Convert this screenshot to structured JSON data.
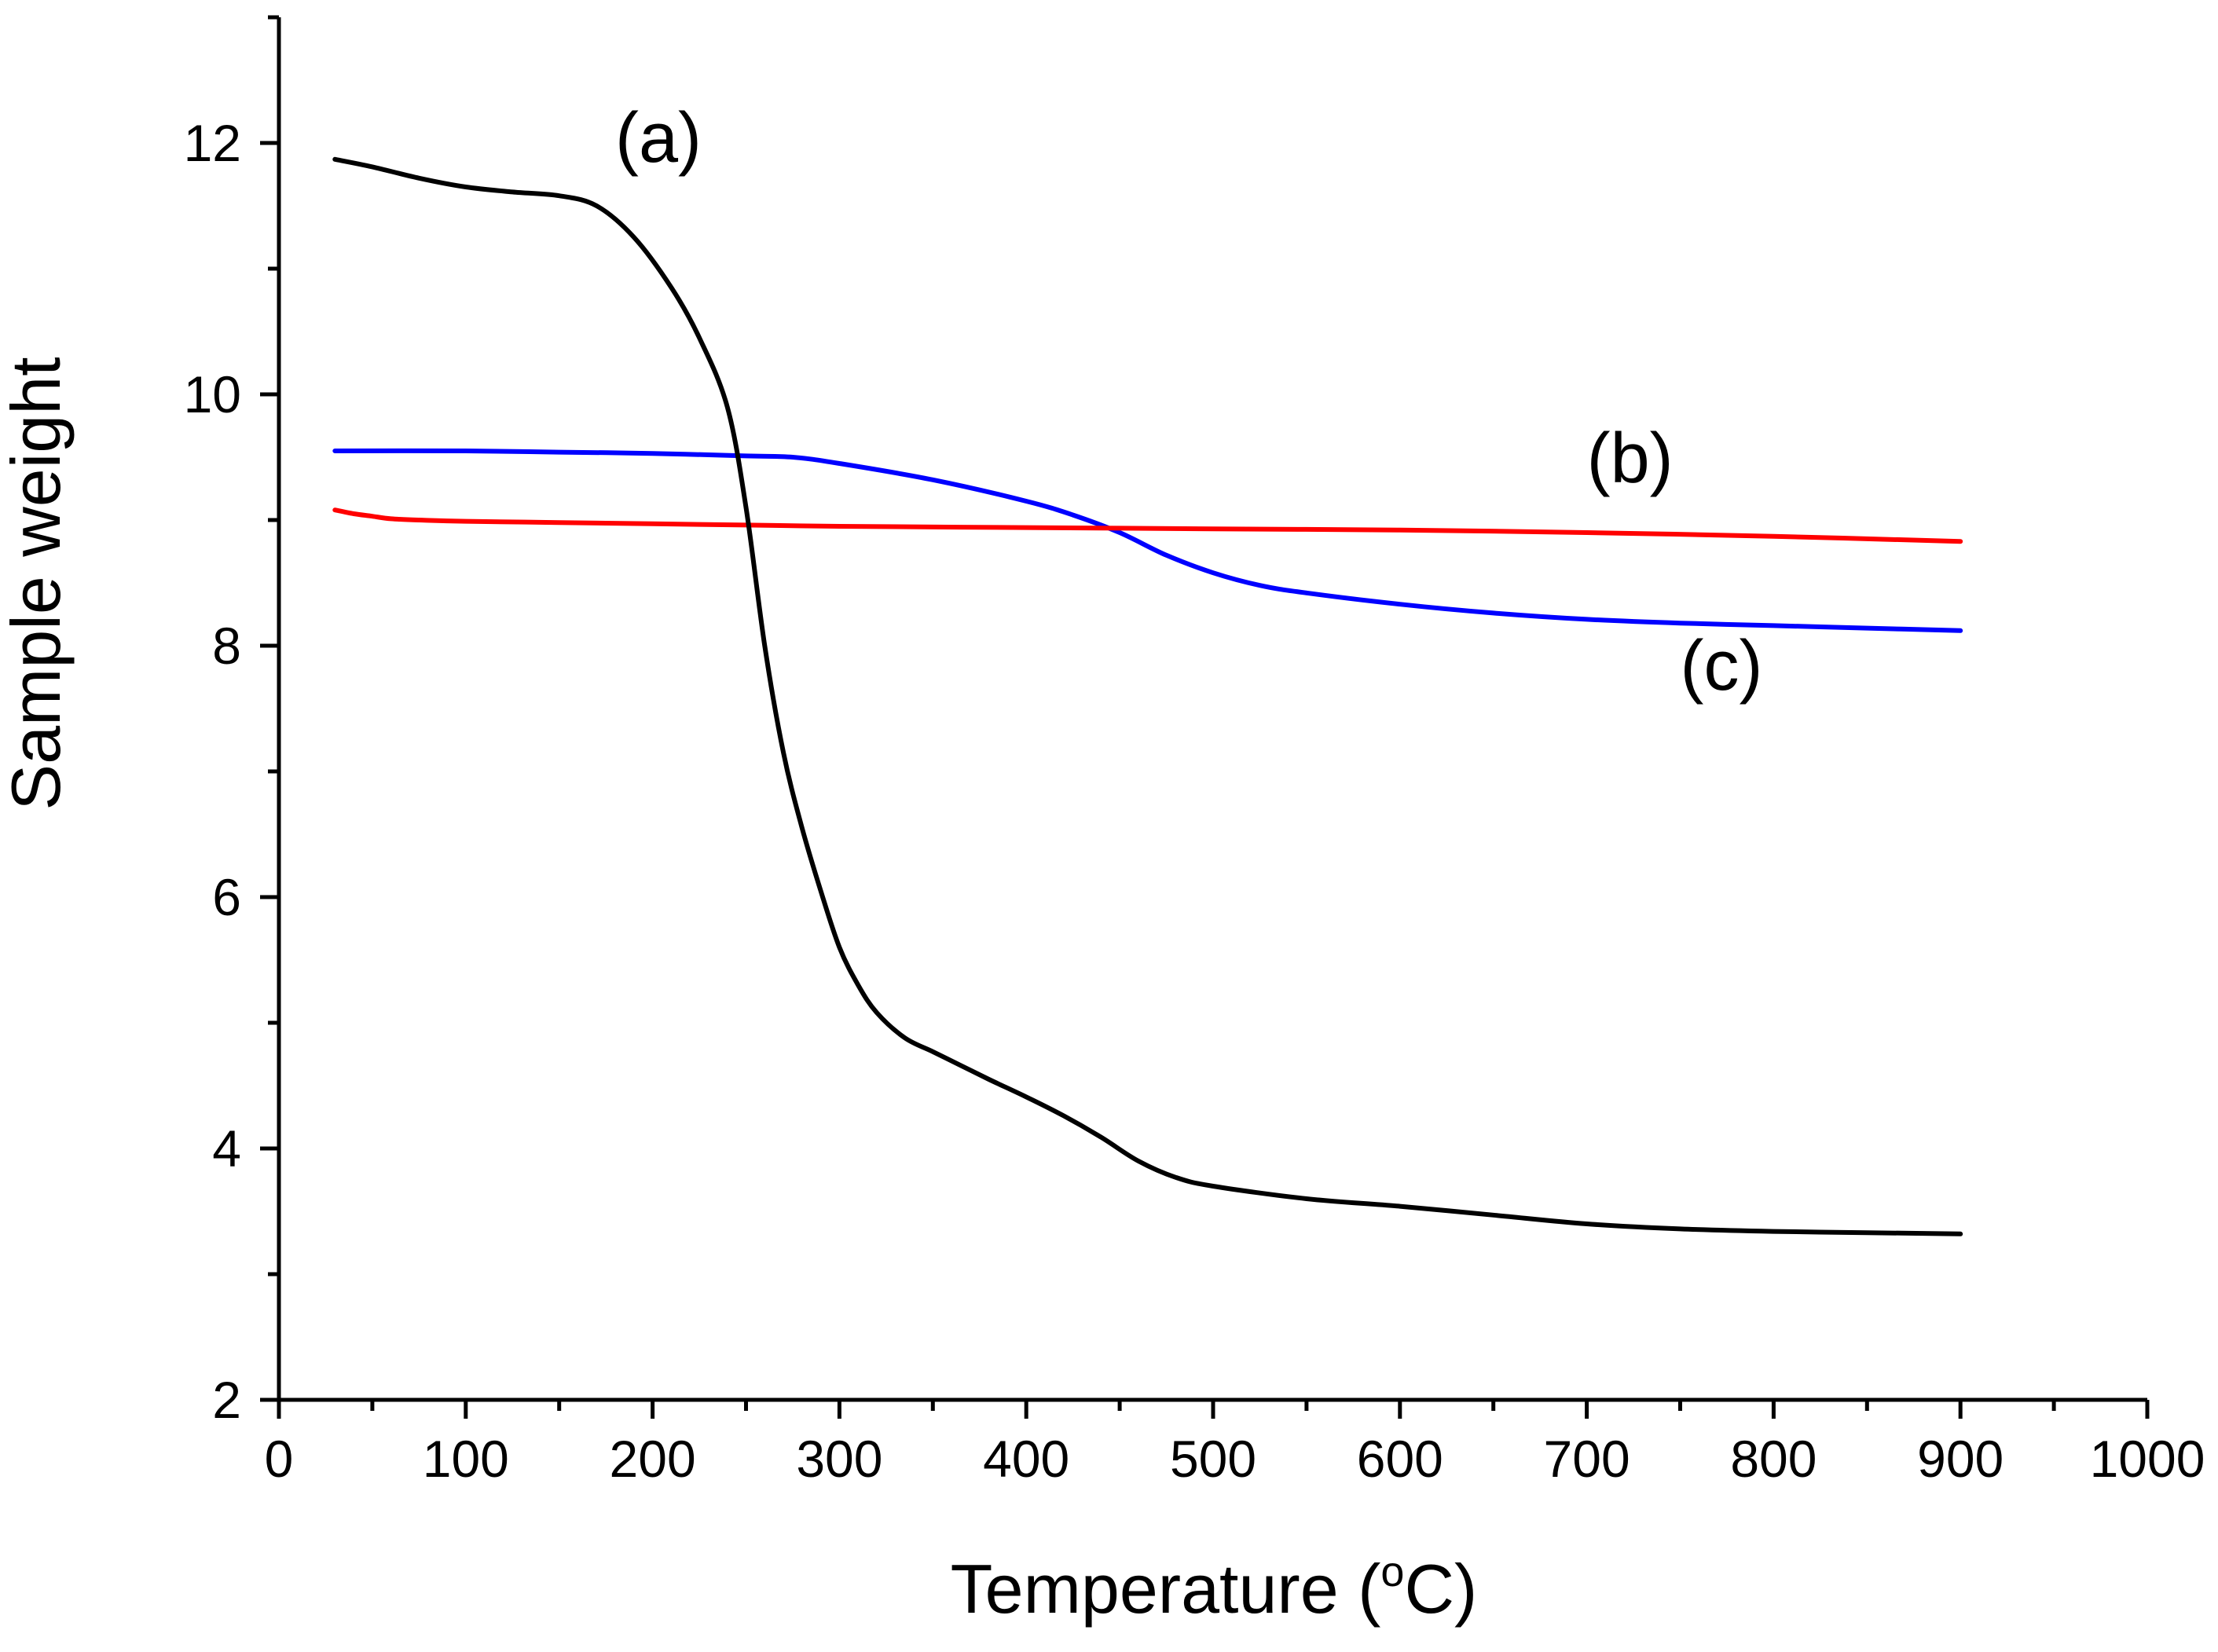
{
  "chart_data": {
    "type": "line",
    "title": "",
    "xlabel": "Temperature (",
    "xlabel_sup": "o",
    "xlabel_suffix": "C)",
    "ylabel": "Sample weight",
    "xlim": [
      0,
      1000
    ],
    "ylim": [
      2,
      13
    ],
    "grid": false,
    "legend": "none",
    "x_ticks": [
      0,
      100,
      200,
      300,
      400,
      500,
      600,
      700,
      800,
      900,
      1000
    ],
    "x_tick_labels": [
      "0",
      "100",
      "200",
      "300",
      "400",
      "500",
      "600",
      "700",
      "800",
      "900",
      "1000"
    ],
    "x_minor_ticks": [
      50,
      150,
      250,
      350,
      450,
      550,
      650,
      750,
      850,
      950
    ],
    "y_ticks": [
      2,
      4,
      6,
      8,
      10,
      12
    ],
    "y_tick_labels": [
      "2",
      "4",
      "6",
      "8",
      "10",
      "12"
    ],
    "y_minor_ticks": [
      3,
      5,
      7,
      9,
      11,
      13
    ],
    "series": [
      {
        "name": "(a)",
        "color": "#000000",
        "label_at": [
          180,
          11.85
        ],
        "x": [
          30,
          50,
          75,
          100,
          125,
          150,
          170,
          190,
          210,
          225,
          240,
          250,
          260,
          270,
          280,
          290,
          300,
          310,
          320,
          335,
          350,
          365,
          380,
          400,
          420,
          440,
          460,
          480,
          500,
          550,
          600,
          650,
          700,
          750,
          800,
          850,
          900
        ],
        "y": [
          11.87,
          11.81,
          11.72,
          11.65,
          11.61,
          11.58,
          11.5,
          11.25,
          10.85,
          10.45,
          9.9,
          9.1,
          8.0,
          7.15,
          6.55,
          6.05,
          5.6,
          5.3,
          5.08,
          4.88,
          4.77,
          4.66,
          4.55,
          4.41,
          4.26,
          4.09,
          3.9,
          3.77,
          3.7,
          3.6,
          3.54,
          3.47,
          3.4,
          3.36,
          3.34,
          3.33,
          3.32
        ]
      },
      {
        "name": "(b)",
        "color": "#ff0000",
        "label_at": [
          700,
          9.3
        ],
        "x": [
          30,
          40,
          50,
          60,
          75,
          100,
          150,
          200,
          250,
          300,
          400,
          500,
          600,
          700,
          800,
          900
        ],
        "y": [
          9.08,
          9.05,
          9.03,
          9.01,
          9.0,
          8.99,
          8.98,
          8.97,
          8.96,
          8.95,
          8.94,
          8.93,
          8.92,
          8.9,
          8.87,
          8.83
        ]
      },
      {
        "name": "(c)",
        "color": "#0000ff",
        "label_at": [
          750,
          7.65
        ],
        "x": [
          30,
          100,
          150,
          200,
          250,
          275,
          300,
          350,
          400,
          425,
          450,
          475,
          500,
          525,
          550,
          600,
          650,
          700,
          750,
          800,
          850,
          900
        ],
        "y": [
          9.55,
          9.55,
          9.54,
          9.53,
          9.51,
          9.5,
          9.45,
          9.32,
          9.15,
          9.04,
          8.9,
          8.72,
          8.58,
          8.48,
          8.42,
          8.33,
          8.26,
          8.21,
          8.18,
          8.16,
          8.14,
          8.12
        ]
      }
    ]
  }
}
